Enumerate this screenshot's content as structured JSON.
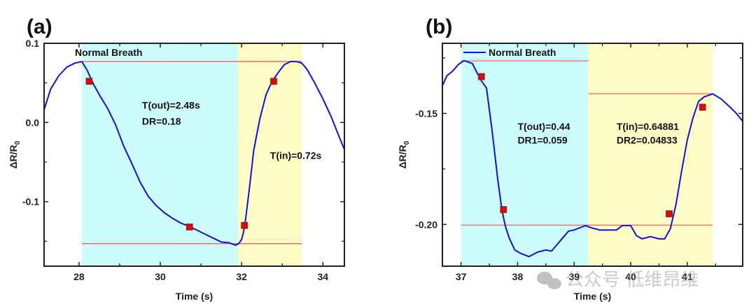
{
  "chart_data": [
    {
      "type": "line",
      "panel_label": "(a)",
      "xlabel": "Time (s)",
      "ylabel": "ΔR/R",
      "ylabel_sub": "0",
      "xlim": [
        27.14,
        34.53
      ],
      "ylim": [
        -0.1815,
        0.1
      ],
      "x_ticks": [
        28,
        30,
        32,
        34
      ],
      "x_tick_labels": [
        "28",
        "30",
        "32",
        "34"
      ],
      "x_minor_ticks": [
        29,
        31,
        33
      ],
      "y_ticks": [
        0.1,
        0.0,
        -0.1
      ],
      "y_tick_labels": [
        "0.1",
        "0.0",
        "-0.1"
      ],
      "y_minor_ticks": [
        0.05,
        -0.05,
        -0.15
      ],
      "legend": {
        "label": "Normal Breath",
        "show_line": false,
        "placement": "top-left"
      },
      "shaded_regions": [
        {
          "name": "exhale",
          "x0": 28.07,
          "x1": 31.91,
          "color": "#ccfcfc"
        },
        {
          "name": "inhale",
          "x0": 31.91,
          "x1": 33.48,
          "color": "#fefcc4"
        }
      ],
      "reference_lines": [
        {
          "y": 0.077,
          "x0": 28.07,
          "x1": 33.48,
          "color": "#f06060"
        },
        {
          "y": -0.153,
          "x0": 28.07,
          "x1": 33.48,
          "color": "#f06060"
        }
      ],
      "series": [
        {
          "name": "Normal Breath",
          "color": "#1010e0",
          "x": [
            27.14,
            27.3,
            27.5,
            27.7,
            27.9,
            28.07,
            28.2,
            28.35,
            28.5,
            28.7,
            28.9,
            29.1,
            29.3,
            29.5,
            29.7,
            29.9,
            30.1,
            30.3,
            30.5,
            30.7,
            30.9,
            31.1,
            31.3,
            31.5,
            31.7,
            31.85,
            31.93,
            32.0,
            32.05,
            32.1,
            32.2,
            32.3,
            32.45,
            32.6,
            32.75,
            32.9,
            33.05,
            33.2,
            33.35,
            33.48,
            33.6,
            33.8,
            34.0,
            34.2,
            34.4,
            34.53
          ],
          "y": [
            0.016,
            0.042,
            0.059,
            0.07,
            0.075,
            0.077,
            0.066,
            0.049,
            0.035,
            0.018,
            -0.003,
            -0.03,
            -0.052,
            -0.075,
            -0.093,
            -0.105,
            -0.114,
            -0.121,
            -0.127,
            -0.131,
            -0.136,
            -0.141,
            -0.146,
            -0.151,
            -0.152,
            -0.155,
            -0.153,
            -0.148,
            -0.138,
            -0.122,
            -0.08,
            -0.035,
            0.005,
            0.035,
            0.052,
            0.063,
            0.073,
            0.077,
            0.077,
            0.075,
            0.068,
            0.05,
            0.03,
            0.008,
            -0.018,
            -0.034
          ]
        }
      ],
      "markers": [
        {
          "x": 28.25,
          "y": 0.052,
          "color": "#ee0000"
        },
        {
          "x": 30.72,
          "y": -0.132,
          "color": "#ee0000"
        },
        {
          "x": 32.07,
          "y": -0.13,
          "color": "#ee0000"
        },
        {
          "x": 32.79,
          "y": 0.052,
          "color": "#ee0000"
        }
      ],
      "annotations": [
        {
          "text": "T(out)=2.48s",
          "x": 29.55,
          "y": 0.0175
        },
        {
          "text": "DR=0.18",
          "x": 29.55,
          "y": -0.003
        },
        {
          "text": "T(in)=0.72s",
          "x": 32.7,
          "y": -0.046
        }
      ]
    },
    {
      "type": "line",
      "panel_label": "(b)",
      "xlabel": "Time (s)",
      "ylabel": "ΔR/R",
      "ylabel_sub": "0",
      "xlim": [
        36.67,
        41.98
      ],
      "ylim": [
        -0.2188,
        -0.1184
      ],
      "x_ticks": [
        37,
        38,
        39,
        40,
        41
      ],
      "x_tick_labels": [
        "37",
        "38",
        "39",
        "40",
        "41"
      ],
      "x_minor_ticks": [
        37.5,
        38.5,
        39.5,
        40.5,
        41.5
      ],
      "y_ticks": [
        -0.15,
        -0.2
      ],
      "y_tick_labels": [
        "-0.15",
        "-0.20"
      ],
      "y_minor_ticks": [
        -0.125,
        -0.175
      ],
      "legend": {
        "label": "Normal Breath",
        "show_line": true,
        "placement": "top-left"
      },
      "shaded_regions": [
        {
          "name": "exhale",
          "x0": 37.0,
          "x1": 39.25,
          "color": "#ccfcfc"
        },
        {
          "name": "inhale",
          "x0": 39.25,
          "x1": 41.45,
          "color": "#fefcc4"
        }
      ],
      "reference_lines": [
        {
          "y": -0.1263,
          "x0": 37.0,
          "x1": 39.25,
          "color": "#f06060"
        },
        {
          "y": -0.1411,
          "x0": 39.25,
          "x1": 41.45,
          "color": "#f06060"
        },
        {
          "y": -0.2003,
          "x0": 37.0,
          "x1": 41.45,
          "color": "#f06060"
        }
      ],
      "series": [
        {
          "name": "Normal Breath",
          "color": "#1010e0",
          "x": [
            36.67,
            36.75,
            36.85,
            36.95,
            37.05,
            37.2,
            37.35,
            37.45,
            37.55,
            37.65,
            37.72,
            37.78,
            37.85,
            37.95,
            38.05,
            38.2,
            38.35,
            38.5,
            38.6,
            38.7,
            38.8,
            38.9,
            39.0,
            39.1,
            39.2,
            39.3,
            39.45,
            39.6,
            39.75,
            39.85,
            40.0,
            40.1,
            40.2,
            40.35,
            40.5,
            40.6,
            40.7,
            40.8,
            40.9,
            41.0,
            41.1,
            41.2,
            41.3,
            41.45,
            41.6,
            41.75,
            41.85,
            41.98
          ],
          "y": [
            -0.1375,
            -0.133,
            -0.131,
            -0.128,
            -0.1262,
            -0.1275,
            -0.135,
            -0.1385,
            -0.158,
            -0.18,
            -0.193,
            -0.2005,
            -0.206,
            -0.2115,
            -0.213,
            -0.2145,
            -0.2125,
            -0.2115,
            -0.212,
            -0.209,
            -0.206,
            -0.203,
            -0.2025,
            -0.2015,
            -0.2005,
            -0.2015,
            -0.2025,
            -0.2025,
            -0.2025,
            -0.2005,
            -0.2005,
            -0.205,
            -0.2065,
            -0.2055,
            -0.2065,
            -0.2065,
            -0.202,
            -0.191,
            -0.176,
            -0.162,
            -0.152,
            -0.1445,
            -0.1425,
            -0.1412,
            -0.1435,
            -0.147,
            -0.1495,
            -0.1535
          ]
        }
      ],
      "markers": [
        {
          "x": 37.36,
          "y": -0.1334,
          "color": "#ee0000"
        },
        {
          "x": 37.75,
          "y": -0.1933,
          "color": "#ee0000"
        },
        {
          "x": 40.68,
          "y": -0.1952,
          "color": "#ee0000"
        },
        {
          "x": 41.27,
          "y": -0.1472,
          "color": "#ee0000"
        }
      ],
      "annotations": [
        {
          "text": "T(out)=0.44",
          "x": 38.0,
          "y": -0.1575
        },
        {
          "text": "DR1=0.059",
          "x": 38.0,
          "y": -0.1635
        },
        {
          "text": "T(in)=0.64881",
          "x": 39.75,
          "y": -0.1575
        },
        {
          "text": "DR2=0.04833",
          "x": 39.75,
          "y": -0.1635
        }
      ]
    }
  ],
  "watermark": {
    "icon": "wechat-icon",
    "text": "公众号 低维昂维"
  }
}
